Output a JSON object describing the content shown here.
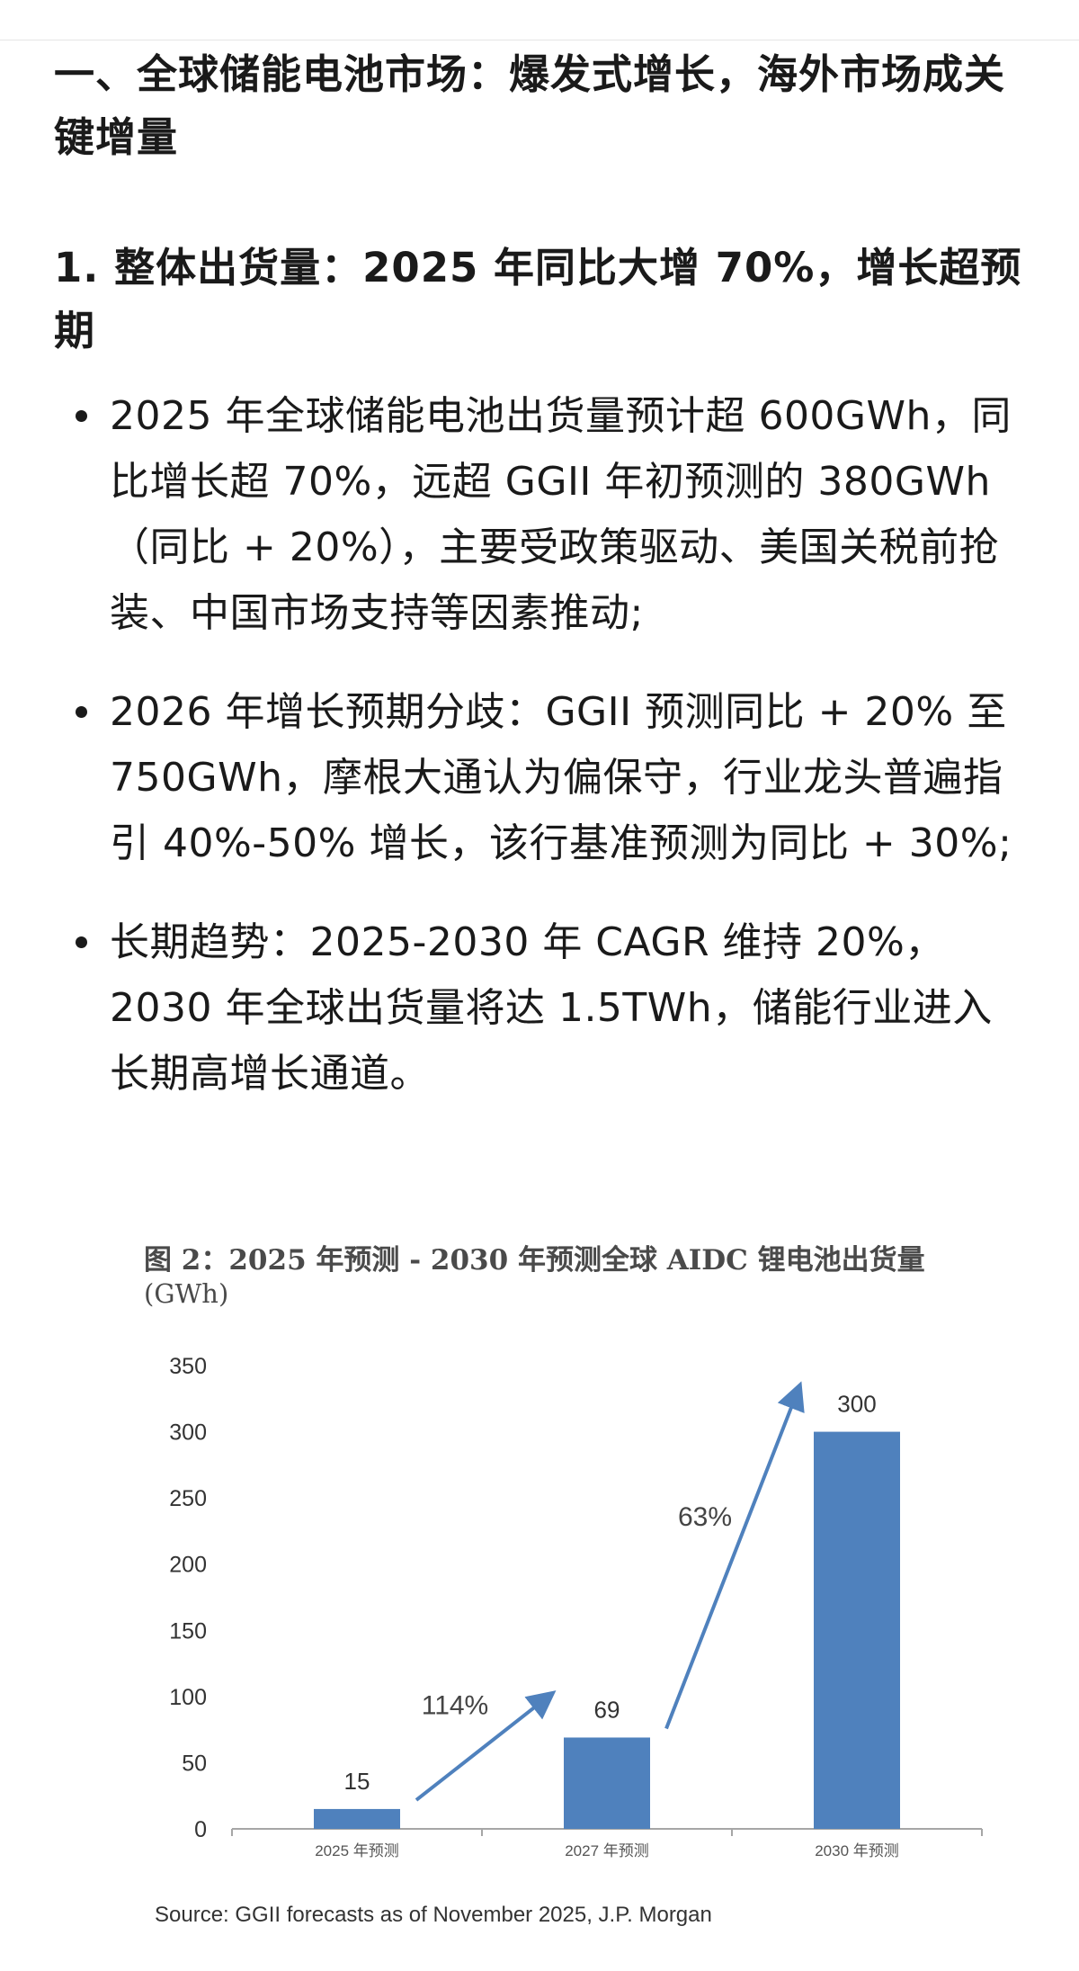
{
  "heading1": "一、全球储能电池市场：爆发式增长，海外市场成关键增量",
  "heading2": "1. 整体出货量：2025 年同比大增 70%，增长超预期",
  "bullets": [
    "2025 年全球储能电池出货量预计超 600GWh，同比增长超 70%，远超 GGII 年初预测的 380GWh（同比 + 20%），主要受政策驱动、美国关税前抢装、中国市场支持等因素推动;",
    "2026 年增长预期分歧：GGII 预测同比 + 20% 至 750GWh，摩根大通认为偏保守，行业龙头普遍指引 40%-50% 增长，该行基准预测为同比 + 30%;",
    "长期趋势：2025-2030 年 CAGR 维持 20%，2030 年全球出货量将达 1.5TWh，储能行业进入长期高增长通道。"
  ],
  "figure": {
    "title": "图 2：2025 年预测 - 2030 年预测全球 AIDC 锂电池出货量",
    "unit": "(GWh)",
    "source": "Source: GGII forecasts as of November 2025, J.P. Morgan"
  },
  "chart_data": {
    "type": "bar",
    "title": "图 2：2025 年预测 - 2030 年预测全球 AIDC 锂电池出货量",
    "ylabel": "(GWh)",
    "xlabel": "",
    "categories": [
      "2025 年预测",
      "2027 年预测",
      "2030 年预测"
    ],
    "values": [
      15,
      69,
      300
    ],
    "ylim": [
      0,
      350
    ],
    "yticks": [
      0,
      50,
      100,
      150,
      200,
      250,
      300,
      350
    ],
    "grid": false,
    "legend": "none",
    "bar_color": "#4f81bd",
    "arrow_color": "#4f81bd",
    "growth_annotations": [
      {
        "from": "2025 年预测",
        "to": "2027 年预测",
        "label": "114%"
      },
      {
        "from": "2027 年预测",
        "to": "2030 年预测",
        "label": "63%"
      }
    ]
  }
}
